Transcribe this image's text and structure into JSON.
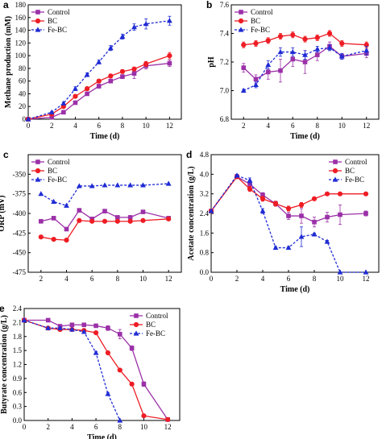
{
  "colors": {
    "Control": "#9b30a8",
    "BC": "#ee1c24",
    "Fe-BC": "#1f2bd4"
  },
  "chart_data": [
    {
      "panel": "a",
      "type": "line",
      "xlabel": "Time (d)",
      "ylabel": "Methane production (mM)",
      "xlim": [
        0,
        13
      ],
      "ylim": [
        0,
        180
      ],
      "xticks": [
        0,
        2,
        4,
        6,
        8,
        10,
        12
      ],
      "yticks": [
        0,
        20,
        40,
        60,
        80,
        100,
        120,
        140,
        160,
        180
      ],
      "legend": "top-left",
      "series": [
        {
          "name": "Control",
          "marker": "square",
          "dash": false,
          "x": [
            0,
            2,
            3,
            4,
            5,
            6,
            7,
            8,
            9,
            10,
            12
          ],
          "y": [
            0,
            3,
            11,
            26,
            40,
            52,
            60,
            67,
            72,
            84,
            88
          ],
          "err": [
            0,
            1,
            1,
            2,
            2,
            3,
            3,
            3,
            8,
            5,
            5
          ]
        },
        {
          "name": "BC",
          "marker": "circle",
          "dash": false,
          "x": [
            0,
            2,
            3,
            4,
            5,
            6,
            7,
            8,
            9,
            10,
            12
          ],
          "y": [
            0,
            8,
            20,
            36,
            48,
            60,
            68,
            75,
            79,
            87,
            100
          ],
          "err": [
            0,
            1,
            2,
            2,
            3,
            3,
            3,
            3,
            3,
            4,
            5
          ]
        },
        {
          "name": "Fe-BC",
          "marker": "triangle",
          "dash": true,
          "x": [
            0,
            2,
            3,
            4,
            5,
            6,
            7,
            8,
            9,
            10,
            12
          ],
          "y": [
            0,
            11,
            25,
            48,
            70,
            90,
            112,
            130,
            145,
            150,
            155
          ],
          "err": [
            0,
            1,
            2,
            3,
            3,
            3,
            4,
            4,
            5,
            8,
            7
          ]
        }
      ]
    },
    {
      "panel": "b",
      "type": "line",
      "xlabel": "Time (d)",
      "ylabel": "pH",
      "xlim": [
        1,
        13
      ],
      "ylim": [
        6.8,
        7.6
      ],
      "xticks": [
        2,
        4,
        6,
        8,
        10,
        12
      ],
      "yticks": [
        6.8,
        7.0,
        7.2,
        7.4,
        7.6
      ],
      "legend": "top-left",
      "series": [
        {
          "name": "Control",
          "marker": "square",
          "dash": false,
          "x": [
            2,
            3,
            4,
            5,
            6,
            7,
            8,
            9,
            10,
            12
          ],
          "y": [
            7.16,
            7.08,
            7.13,
            7.14,
            7.22,
            7.2,
            7.25,
            7.31,
            7.24,
            7.26
          ],
          "err": [
            0.03,
            0.03,
            0.05,
            0.08,
            0.05,
            0.08,
            0.04,
            0.03,
            0.02,
            0.03
          ]
        },
        {
          "name": "BC",
          "marker": "circle",
          "dash": false,
          "x": [
            2,
            3,
            4,
            5,
            6,
            7,
            8,
            9,
            10,
            12
          ],
          "y": [
            7.32,
            7.33,
            7.35,
            7.38,
            7.39,
            7.36,
            7.37,
            7.4,
            7.33,
            7.32
          ],
          "err": [
            0.02,
            0.02,
            0.02,
            0.02,
            0.02,
            0.02,
            0.02,
            0.02,
            0.02,
            0.02
          ]
        },
        {
          "name": "Fe-BC",
          "marker": "triangle",
          "dash": true,
          "x": [
            2,
            3,
            4,
            5,
            6,
            7,
            8,
            9,
            10,
            12
          ],
          "y": [
            7.0,
            7.04,
            7.18,
            7.27,
            7.27,
            7.25,
            7.29,
            7.3,
            7.24,
            7.28
          ],
          "err": [
            0.01,
            0.02,
            0.03,
            0.03,
            0.03,
            0.03,
            0.02,
            0.02,
            0.02,
            0.03
          ]
        }
      ]
    },
    {
      "panel": "c",
      "type": "line",
      "xlabel": "",
      "ylabel": "ORP (mV)",
      "xlim": [
        1,
        13
      ],
      "ylim": [
        -475,
        -325
      ],
      "xticks": [
        2,
        4,
        6,
        8,
        10,
        12
      ],
      "yticks": [
        -350,
        -375,
        -400,
        -425,
        -450,
        -475
      ],
      "legend": "top-left",
      "series": [
        {
          "name": "Control",
          "marker": "square",
          "dash": false,
          "x": [
            2,
            3,
            4,
            5,
            6,
            7,
            8,
            9,
            10,
            12
          ],
          "y": [
            -410,
            -406,
            -420,
            -396,
            -407,
            -397,
            -405,
            -405,
            -398,
            -406
          ],
          "err": [
            0,
            0,
            0,
            0,
            0,
            0,
            0,
            0,
            0,
            0
          ]
        },
        {
          "name": "BC",
          "marker": "circle",
          "dash": false,
          "x": [
            2,
            3,
            4,
            5,
            6,
            7,
            8,
            9,
            10,
            12
          ],
          "y": [
            -430,
            -433,
            -434,
            -409,
            -410,
            -410,
            -410,
            -410,
            -409,
            -407
          ],
          "err": [
            0,
            0,
            0,
            0,
            0,
            0,
            0,
            0,
            0,
            0
          ]
        },
        {
          "name": "Fe-BC",
          "marker": "triangle",
          "dash": true,
          "x": [
            2,
            3,
            4,
            5,
            6,
            7,
            8,
            9,
            10,
            12
          ],
          "y": [
            -375,
            -385,
            -390,
            -365,
            -365,
            -364,
            -364,
            -364,
            -364,
            -362
          ],
          "err": [
            0,
            0,
            0,
            0,
            0,
            0,
            0,
            0,
            0,
            0
          ]
        }
      ]
    },
    {
      "panel": "d",
      "type": "line",
      "xlabel": "Time (d)",
      "ylabel": "Acetate concentration (g/L)",
      "xlim": [
        0,
        13
      ],
      "ylim": [
        0.0,
        4.8
      ],
      "xticks": [
        0,
        2,
        4,
        6,
        8,
        10,
        12
      ],
      "yticks": [
        0.0,
        0.8,
        1.6,
        2.4,
        3.2,
        4.0,
        4.8
      ],
      "legend": "top-right",
      "series": [
        {
          "name": "Control",
          "marker": "square",
          "dash": false,
          "x": [
            0,
            2,
            3,
            4,
            5,
            6,
            7,
            8,
            9,
            10,
            12
          ],
          "y": [
            2.5,
            3.9,
            3.6,
            3.15,
            2.8,
            2.3,
            2.3,
            2.05,
            2.25,
            2.35,
            2.4
          ],
          "err": [
            0,
            0.05,
            0.1,
            0.1,
            0.1,
            0.15,
            0.3,
            0.2,
            0.2,
            0.4,
            0.1
          ]
        },
        {
          "name": "BC",
          "marker": "circle",
          "dash": false,
          "x": [
            0,
            2,
            3,
            4,
            5,
            6,
            7,
            8,
            9,
            10,
            12
          ],
          "y": [
            2.5,
            3.9,
            3.4,
            3.0,
            2.8,
            2.6,
            2.75,
            3.0,
            3.2,
            3.2,
            3.2
          ],
          "err": [
            0,
            0.05,
            0.1,
            0.1,
            0.1,
            0.1,
            0.1,
            0.05,
            0.05,
            0.05,
            0.05
          ]
        },
        {
          "name": "Fe-BC",
          "marker": "triangle",
          "dash": true,
          "x": [
            0,
            2,
            3,
            4,
            5,
            6,
            7,
            8,
            9,
            10,
            12
          ],
          "y": [
            2.5,
            3.95,
            3.75,
            2.5,
            1.0,
            1.0,
            1.45,
            1.55,
            1.25,
            0.0,
            0.0
          ],
          "err": [
            0,
            0.05,
            0.1,
            0.1,
            0.05,
            0.05,
            0.4,
            0.05,
            0.05,
            0,
            0
          ]
        }
      ]
    },
    {
      "panel": "e",
      "type": "line",
      "xlabel": "Time (d)",
      "ylabel": "Butyrate concentration (g/L)",
      "xlim": [
        0,
        13
      ],
      "ylim": [
        0.0,
        2.4
      ],
      "xticks": [
        0,
        2,
        4,
        6,
        8,
        10,
        12
      ],
      "yticks": [
        0.0,
        0.3,
        0.6,
        0.9,
        1.2,
        1.5,
        1.8,
        2.1,
        2.4
      ],
      "legend": "top-right",
      "series": [
        {
          "name": "Control",
          "marker": "square",
          "dash": false,
          "x": [
            0,
            2,
            3,
            4,
            5,
            6,
            7,
            8,
            9,
            10,
            12
          ],
          "y": [
            2.15,
            2.15,
            2.02,
            2.05,
            2.05,
            2.03,
            1.98,
            1.85,
            1.55,
            0.78,
            0.02
          ],
          "err": [
            0,
            0.03,
            0.03,
            0.02,
            0.02,
            0.02,
            0.05,
            0.1,
            0.05,
            0.05,
            0.02
          ]
        },
        {
          "name": "BC",
          "marker": "circle",
          "dash": false,
          "x": [
            0,
            2,
            3,
            4,
            5,
            6,
            7,
            8,
            9,
            10,
            12
          ],
          "y": [
            2.15,
            1.98,
            1.95,
            1.95,
            1.93,
            1.88,
            1.45,
            1.08,
            0.78,
            0.1,
            0.02
          ],
          "err": [
            0,
            0.02,
            0.02,
            0.02,
            0.02,
            0.02,
            0.03,
            0.03,
            0.03,
            0.02,
            0.02
          ]
        },
        {
          "name": "Fe-BC",
          "marker": "triangle",
          "dash": true,
          "x": [
            0,
            2,
            3,
            4,
            5,
            6,
            7,
            8
          ],
          "y": [
            2.15,
            1.98,
            1.98,
            1.95,
            1.9,
            1.45,
            0.57,
            0.0
          ],
          "err": [
            0,
            0.02,
            0.02,
            0.02,
            0.02,
            0.03,
            0.03,
            0
          ]
        }
      ]
    }
  ]
}
